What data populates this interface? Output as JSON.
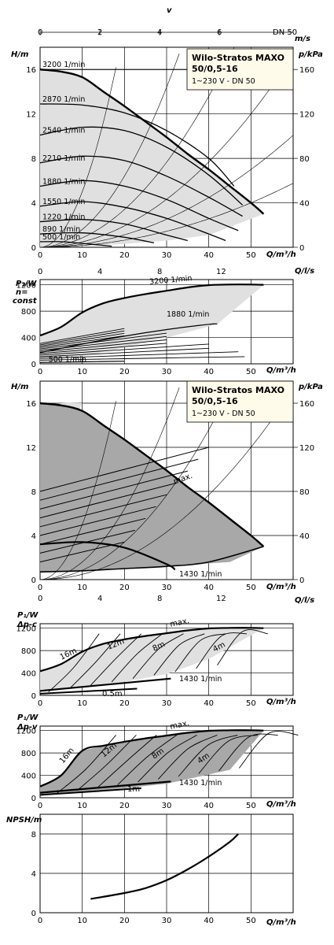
{
  "chart_data": [
    {
      "type": "line",
      "title": "Wilo-Stratos MAXO",
      "subtitle_lines": [
        "50/0,5-16",
        "1~230 V - DN 50"
      ],
      "xlabel": "Q/m³/h",
      "ylabel": "H/m",
      "y2label": "p/kPa",
      "top_axis_label": "v",
      "top_axis_unit": "m/s",
      "top_axis_tag": "DN 50",
      "xlim": [
        0,
        60
      ],
      "ylim": [
        0,
        18
      ],
      "x_ticks": [
        0,
        10,
        20,
        30,
        40,
        50
      ],
      "y_ticks": [
        0,
        4,
        8,
        12,
        16
      ],
      "y2_ticks": [
        0,
        40,
        80,
        120,
        160
      ],
      "top_ticks": [
        0,
        2,
        4,
        6
      ],
      "series": [
        {
          "name": "3200 1/min",
          "x": [
            0,
            5,
            10,
            15,
            20,
            25,
            30,
            35,
            40,
            45,
            50,
            53
          ],
          "y": [
            16.0,
            15.8,
            15.3,
            14.0,
            12.7,
            11.3,
            9.9,
            8.4,
            7.0,
            5.5,
            4.0,
            3.0
          ]
        },
        {
          "name": "2870 1/min",
          "x": [
            0,
            10,
            20,
            30,
            40,
            46
          ],
          "y": [
            12.9,
            12.8,
            12.1,
            10.5,
            8.0,
            5.5
          ]
        },
        {
          "name": "2540 1/min",
          "x": [
            0,
            10,
            20,
            30,
            40,
            48
          ],
          "y": [
            10.1,
            10.8,
            10.5,
            9.0,
            6.5,
            3.8
          ]
        },
        {
          "name": "2210 1/min",
          "x": [
            0,
            10,
            20,
            30,
            40,
            48
          ],
          "y": [
            7.6,
            8.2,
            7.8,
            6.4,
            4.5,
            2.8
          ]
        },
        {
          "name": "1880 1/min",
          "x": [
            0,
            10,
            20,
            30,
            40,
            47
          ],
          "y": [
            5.5,
            6.0,
            5.5,
            4.3,
            2.6,
            1.5
          ]
        },
        {
          "name": "1550 1/min",
          "x": [
            0,
            10,
            20,
            30,
            40,
            44
          ],
          "y": [
            3.7,
            4.1,
            3.6,
            2.6,
            1.2,
            0.6
          ]
        },
        {
          "name": "1220 1/min",
          "x": [
            0,
            10,
            20,
            30,
            35
          ],
          "y": [
            2.3,
            2.5,
            2.1,
            1.1,
            0.6
          ]
        },
        {
          "name": "890 1/min",
          "x": [
            0,
            10,
            20,
            27
          ],
          "y": [
            1.2,
            1.3,
            0.9,
            0.4
          ]
        },
        {
          "name": "500 1/min",
          "x": [
            0,
            5,
            10,
            17
          ],
          "y": [
            0.5,
            0.5,
            0.35,
            0.1
          ]
        }
      ]
    },
    {
      "type": "line",
      "xlabel": "Q/m³/h",
      "ylabel_lines": [
        "P₁/W",
        "n=",
        "const"
      ],
      "top_axis_label": "Q/l/s",
      "xlim": [
        0,
        60
      ],
      "ylim": [
        0,
        1280
      ],
      "x_ticks": [
        0,
        10,
        20,
        30,
        40,
        50
      ],
      "y_ticks": [
        0,
        400,
        800,
        1200
      ],
      "top_ticks": [
        0,
        4,
        8,
        12
      ],
      "series": [
        {
          "name": "3200 1/min",
          "x": [
            0,
            5,
            10,
            15,
            20,
            25,
            30,
            35,
            40,
            45,
            50,
            53
          ],
          "y": [
            430,
            560,
            780,
            920,
            1000,
            1060,
            1110,
            1160,
            1195,
            1205,
            1205,
            1200
          ]
        },
        {
          "name": "1880 1/min",
          "x": [
            0,
            10,
            20,
            30,
            40,
            42
          ],
          "y": [
            170,
            300,
            420,
            520,
            600,
            605
          ]
        },
        {
          "name": "500 1/min",
          "x": [
            0,
            10,
            20
          ],
          "y": [
            20,
            30,
            40
          ]
        }
      ],
      "curve_count_between": 12
    },
    {
      "type": "line",
      "title": "Wilo-Stratos MAXO",
      "subtitle_lines": [
        "50/0,5-16",
        "1~230 V - DN 50"
      ],
      "xlabel": "Q/m³/h",
      "ylabel": "H/m",
      "y2label": "p/kPa",
      "top_axis_label": "Q/l/s",
      "xlim": [
        0,
        60
      ],
      "ylim": [
        0,
        18
      ],
      "x_ticks": [
        0,
        10,
        20,
        30,
        40,
        50
      ],
      "y_ticks": [
        0,
        4,
        8,
        12,
        16
      ],
      "y2_ticks": [
        0,
        40,
        80,
        120,
        160
      ],
      "top_ticks": [
        0,
        4,
        8,
        12
      ],
      "annotations": [
        "max.",
        "1430 1/min"
      ]
    },
    {
      "type": "line",
      "xlabel": "Q/m³/h",
      "ylabel_lines": [
        "P₁/W",
        "Δp-c"
      ],
      "xlim": [
        0,
        60
      ],
      "ylim": [
        0,
        1280
      ],
      "x_ticks": [
        0,
        10,
        20,
        30,
        40,
        50
      ],
      "y_ticks": [
        0,
        400,
        800,
        1200
      ],
      "annotations": [
        "max.",
        "16m",
        "12m",
        "8m",
        "4m",
        "0.5m",
        "1430 1/min"
      ]
    },
    {
      "type": "line",
      "xlabel": "Q/m³/h",
      "ylabel_lines": [
        "P₁/W",
        "Δp-v"
      ],
      "xlim": [
        0,
        60
      ],
      "ylim": [
        0,
        1280
      ],
      "x_ticks": [
        0,
        10,
        20,
        30,
        40,
        50
      ],
      "y_ticks": [
        0,
        400,
        800,
        1200
      ],
      "annotations": [
        "max.",
        "16m",
        "12m",
        "8m",
        "4m",
        "1m",
        "1430 1/min"
      ]
    },
    {
      "type": "line",
      "xlabel": "Q/m³/h",
      "ylabel": "NPSH/m",
      "xlim": [
        0,
        60
      ],
      "ylim": [
        0,
        10
      ],
      "x_ticks": [
        0,
        10,
        20,
        30,
        40,
        50
      ],
      "y_ticks": [
        0,
        4,
        8
      ],
      "series": [
        {
          "name": "",
          "x": [
            12,
            20,
            25,
            30,
            35,
            40,
            45,
            47
          ],
          "y": [
            1.4,
            2.0,
            2.5,
            3.3,
            4.4,
            5.7,
            7.2,
            8.0
          ]
        }
      ]
    }
  ],
  "colors": {
    "light_fill": "#e0e0e0",
    "dark_fill": "#a8a8a8",
    "title_box": "#fffbeb",
    "line": "#000000"
  }
}
